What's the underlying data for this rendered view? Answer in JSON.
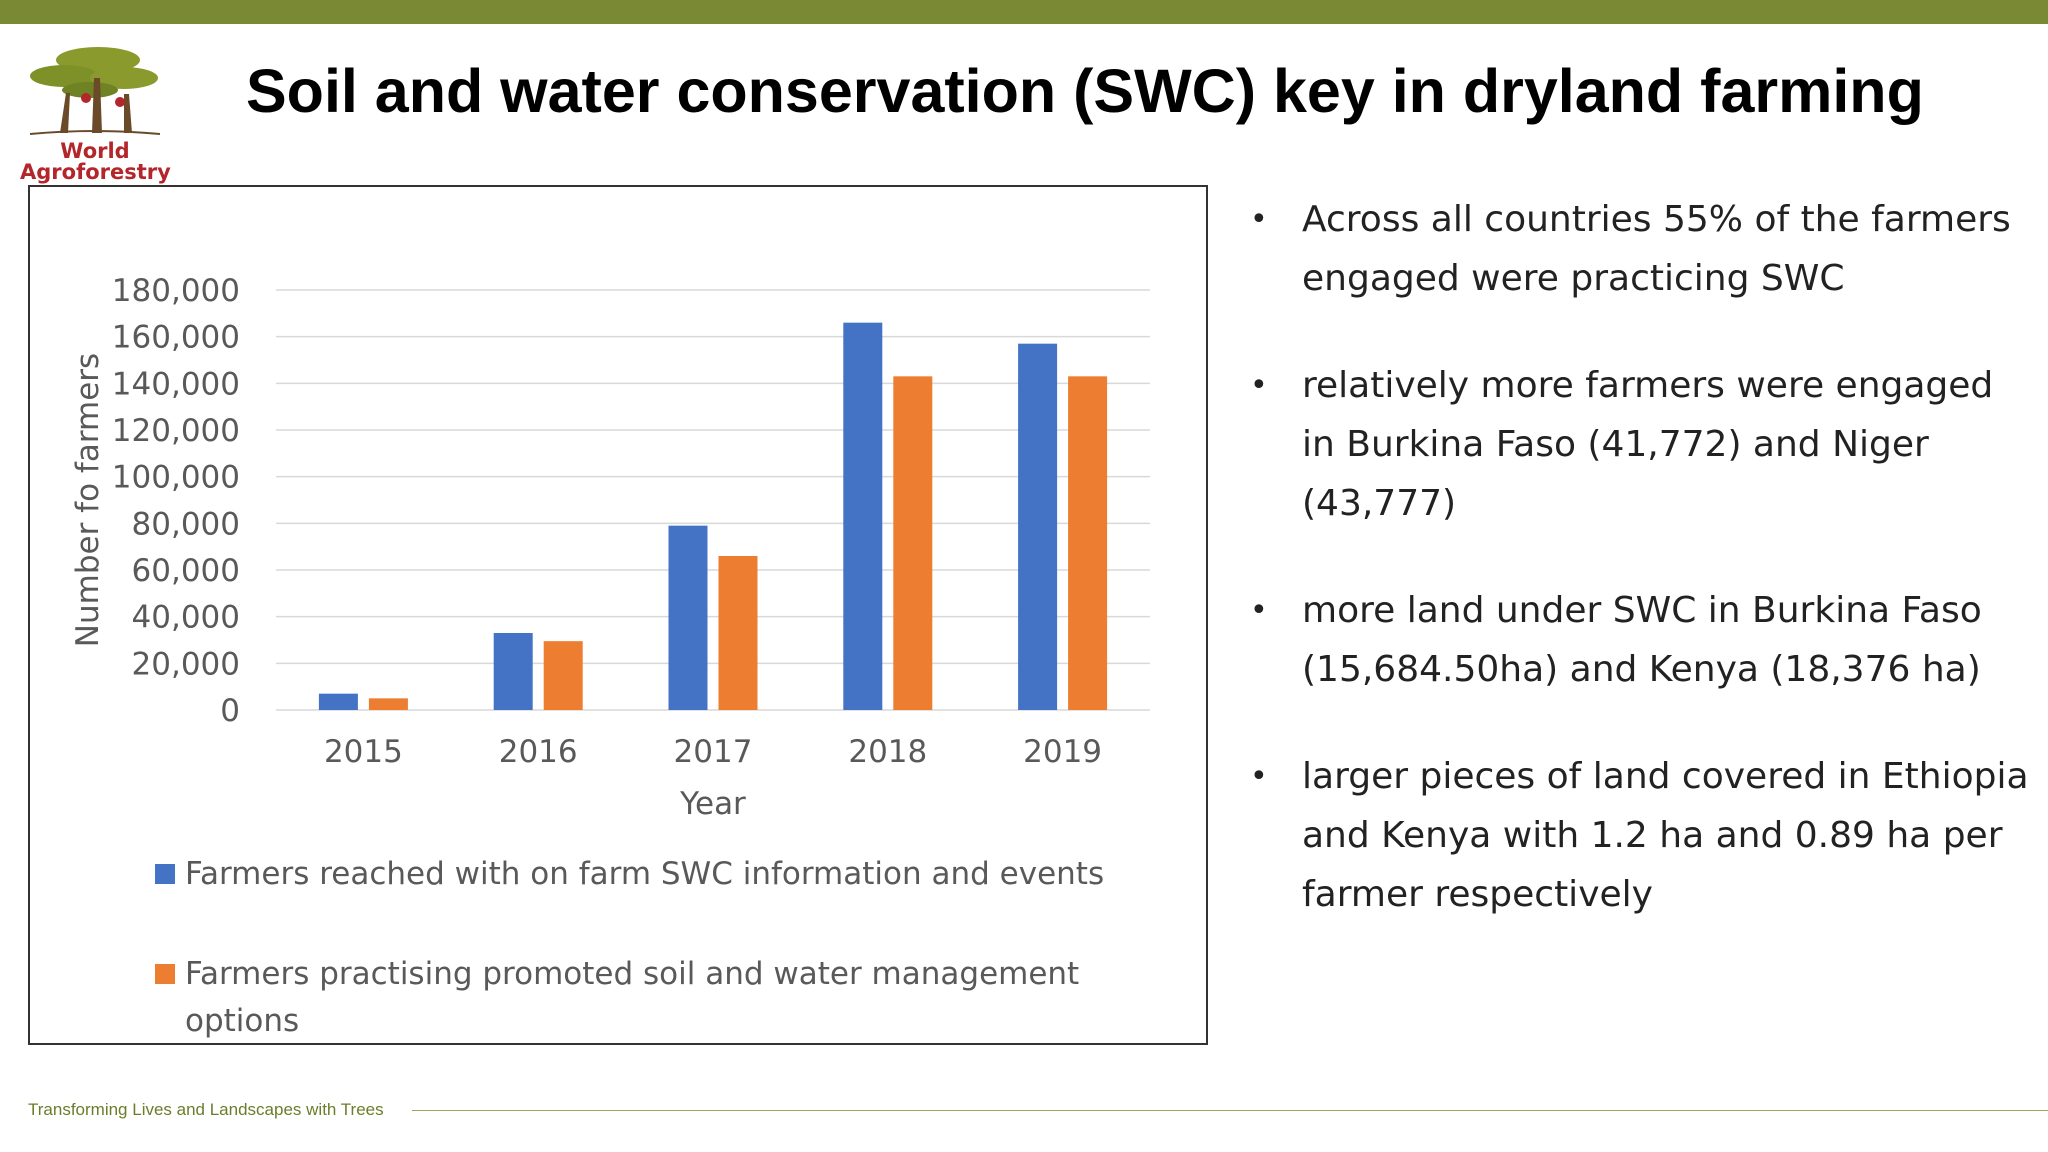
{
  "slide": {
    "title": "Soil and water conservation (SWC) key in dryland farming",
    "footer": "Transforming Lives and Landscapes with Trees"
  },
  "logo": {
    "line1": "World",
    "line2": "Agroforestry"
  },
  "bullets": [
    "Across all countries 55% of the farmers engaged were practicing SWC",
    "relatively more farmers were engaged in Burkina Faso (41,772) and Niger (43,777)",
    "more land under SWC in Burkina Faso (15,684.50ha) and Kenya (18,376 ha)",
    "larger pieces of land covered in Ethiopia and Kenya with 1.2 ha and 0.89 ha per farmer respectively"
  ],
  "colors": {
    "topbar": "#7a8a34",
    "series1": "#4472c4",
    "series2": "#ed7d31",
    "footer": "#6b7d2a"
  },
  "chart_data": {
    "type": "bar",
    "categories": [
      "2015",
      "2016",
      "2017",
      "2018",
      "2019"
    ],
    "series": [
      {
        "name": "Farmers reached with on farm SWC information and events",
        "values": [
          7000,
          33000,
          79000,
          166000,
          157000
        ]
      },
      {
        "name": "Farmers  practising promoted soil and water management options",
        "values": [
          5000,
          29500,
          66000,
          143000,
          143000
        ]
      }
    ],
    "xlabel": "Year",
    "ylabel": "Number fo farmers",
    "ylim": [
      0,
      180000
    ],
    "yticks": [
      "0",
      "20,000",
      "40,000",
      "60,000",
      "80,000",
      "100,000",
      "120,000",
      "140,000",
      "160,000",
      "180,000"
    ],
    "grid": true,
    "legend": "bottom"
  }
}
